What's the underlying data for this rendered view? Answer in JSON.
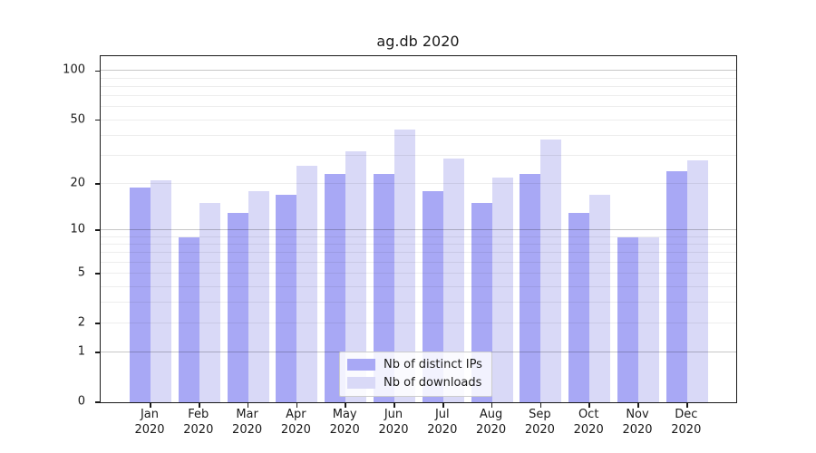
{
  "chart_data": {
    "type": "bar",
    "title": "ag.db 2020",
    "categories": [
      "Jan",
      "Feb",
      "Mar",
      "Apr",
      "May",
      "Jun",
      "Jul",
      "Aug",
      "Sep",
      "Oct",
      "Nov",
      "Dec"
    ],
    "category_sublabel": "2020",
    "series": [
      {
        "name": "Nb of distinct IPs",
        "color": "#a8a8f5",
        "values": [
          19,
          9,
          13,
          17,
          23,
          23,
          18,
          15,
          23,
          13,
          9,
          24
        ]
      },
      {
        "name": "Nb of downloads",
        "color": "#d9d9f7",
        "values": [
          21,
          15,
          18,
          26,
          32,
          44,
          29,
          22,
          38,
          17,
          9,
          28
        ]
      }
    ],
    "y_axis": {
      "scale": "symlog",
      "labeled_ticks": [
        0,
        1,
        2,
        5,
        10,
        20,
        50,
        100
      ],
      "major_gridlines": [
        1,
        10,
        100
      ],
      "minor_gridlines": [
        2,
        3,
        4,
        5,
        6,
        7,
        8,
        9,
        20,
        30,
        40,
        50,
        60,
        70,
        80,
        90
      ],
      "ylim": [
        0,
        123
      ]
    },
    "legend_position": "lower center",
    "grid": true,
    "background_color": "#ffffff",
    "text_color": "#1a1a1a"
  }
}
